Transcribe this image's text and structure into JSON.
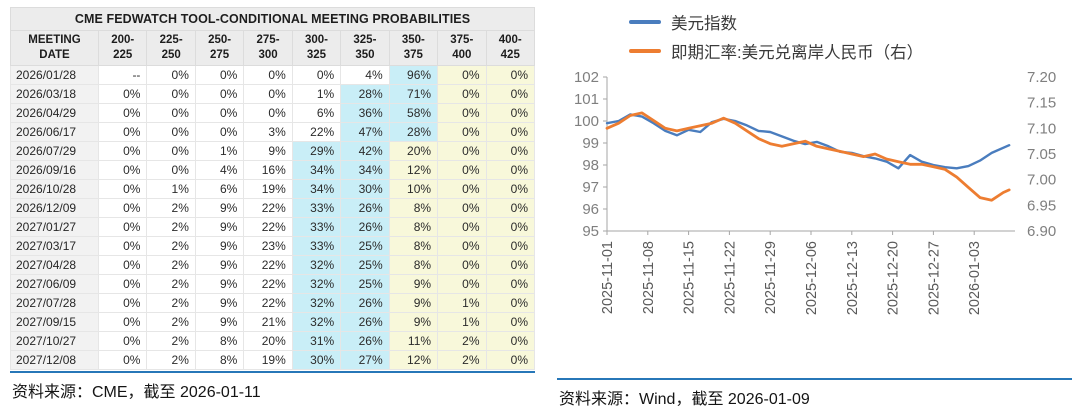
{
  "colors": {
    "divider_blue": "#2777b8",
    "highlight_cyan": "#c9eef7",
    "highlight_yellow": "#f8f8da",
    "header_gray": "#ececec",
    "date_col_gray": "#f2f2f2",
    "series_blue": "#4a7dbe",
    "series_orange": "#ed7d31",
    "axis_gray": "#a6a6a6",
    "tick_label_gray": "#7f7f7f"
  },
  "left_panel": {
    "table": {
      "title": "CME FEDWATCH TOOL-CONDITIONAL MEETING PROBABILITIES",
      "date_header": [
        "MEETING",
        "DATE"
      ],
      "rate_headers": [
        [
          "200-",
          "225"
        ],
        [
          "225-",
          "250"
        ],
        [
          "250-",
          "275"
        ],
        [
          "275-",
          "300"
        ],
        [
          "300-",
          "325"
        ],
        [
          "325-",
          "350"
        ],
        [
          "350-",
          "375"
        ],
        [
          "375-",
          "400"
        ],
        [
          "400-",
          "425"
        ]
      ],
      "rows": [
        {
          "date": "2026/01/28",
          "values": [
            "--",
            "0%",
            "0%",
            "0%",
            "0%",
            "4%",
            "96%",
            "0%",
            "0%"
          ],
          "hl": [
            "n",
            "n",
            "n",
            "n",
            "n",
            "n",
            "c",
            "y",
            "y"
          ]
        },
        {
          "date": "2026/03/18",
          "values": [
            "0%",
            "0%",
            "0%",
            "0%",
            "1%",
            "28%",
            "71%",
            "0%",
            "0%"
          ],
          "hl": [
            "n",
            "n",
            "n",
            "n",
            "n",
            "c",
            "c",
            "y",
            "y"
          ]
        },
        {
          "date": "2026/04/29",
          "values": [
            "0%",
            "0%",
            "0%",
            "0%",
            "6%",
            "36%",
            "58%",
            "0%",
            "0%"
          ],
          "hl": [
            "n",
            "n",
            "n",
            "n",
            "n",
            "c",
            "c",
            "y",
            "y"
          ]
        },
        {
          "date": "2026/06/17",
          "values": [
            "0%",
            "0%",
            "0%",
            "3%",
            "22%",
            "47%",
            "28%",
            "0%",
            "0%"
          ],
          "hl": [
            "n",
            "n",
            "n",
            "n",
            "n",
            "c",
            "c",
            "y",
            "y"
          ]
        },
        {
          "date": "2026/07/29",
          "values": [
            "0%",
            "0%",
            "1%",
            "9%",
            "29%",
            "42%",
            "20%",
            "0%",
            "0%"
          ],
          "hl": [
            "n",
            "n",
            "n",
            "n",
            "c",
            "c",
            "y",
            "y",
            "y"
          ]
        },
        {
          "date": "2026/09/16",
          "values": [
            "0%",
            "0%",
            "4%",
            "16%",
            "34%",
            "34%",
            "12%",
            "0%",
            "0%"
          ],
          "hl": [
            "n",
            "n",
            "n",
            "n",
            "c",
            "c",
            "y",
            "y",
            "y"
          ]
        },
        {
          "date": "2026/10/28",
          "values": [
            "0%",
            "1%",
            "6%",
            "19%",
            "34%",
            "30%",
            "10%",
            "0%",
            "0%"
          ],
          "hl": [
            "n",
            "n",
            "n",
            "n",
            "c",
            "c",
            "y",
            "y",
            "y"
          ]
        },
        {
          "date": "2026/12/09",
          "values": [
            "0%",
            "2%",
            "9%",
            "22%",
            "33%",
            "26%",
            "8%",
            "0%",
            "0%"
          ],
          "hl": [
            "n",
            "n",
            "n",
            "n",
            "c",
            "c",
            "y",
            "y",
            "y"
          ]
        },
        {
          "date": "2027/01/27",
          "values": [
            "0%",
            "2%",
            "9%",
            "22%",
            "33%",
            "26%",
            "8%",
            "0%",
            "0%"
          ],
          "hl": [
            "n",
            "n",
            "n",
            "n",
            "c",
            "c",
            "y",
            "y",
            "y"
          ]
        },
        {
          "date": "2027/03/17",
          "values": [
            "0%",
            "2%",
            "9%",
            "23%",
            "33%",
            "25%",
            "8%",
            "0%",
            "0%"
          ],
          "hl": [
            "n",
            "n",
            "n",
            "n",
            "c",
            "c",
            "y",
            "y",
            "y"
          ]
        },
        {
          "date": "2027/04/28",
          "values": [
            "0%",
            "2%",
            "9%",
            "22%",
            "32%",
            "25%",
            "8%",
            "0%",
            "0%"
          ],
          "hl": [
            "n",
            "n",
            "n",
            "n",
            "c",
            "c",
            "y",
            "y",
            "y"
          ]
        },
        {
          "date": "2027/06/09",
          "values": [
            "0%",
            "2%",
            "9%",
            "22%",
            "32%",
            "25%",
            "9%",
            "0%",
            "0%"
          ],
          "hl": [
            "n",
            "n",
            "n",
            "n",
            "c",
            "c",
            "y",
            "y",
            "y"
          ]
        },
        {
          "date": "2027/07/28",
          "values": [
            "0%",
            "2%",
            "9%",
            "22%",
            "32%",
            "26%",
            "9%",
            "1%",
            "0%"
          ],
          "hl": [
            "n",
            "n",
            "n",
            "n",
            "c",
            "c",
            "y",
            "y",
            "y"
          ]
        },
        {
          "date": "2027/09/15",
          "values": [
            "0%",
            "2%",
            "9%",
            "21%",
            "32%",
            "26%",
            "9%",
            "1%",
            "0%"
          ],
          "hl": [
            "n",
            "n",
            "n",
            "n",
            "c",
            "c",
            "y",
            "y",
            "y"
          ]
        },
        {
          "date": "2027/10/27",
          "values": [
            "0%",
            "2%",
            "8%",
            "20%",
            "31%",
            "26%",
            "11%",
            "2%",
            "0%"
          ],
          "hl": [
            "n",
            "n",
            "n",
            "n",
            "c",
            "c",
            "y",
            "y",
            "y"
          ]
        },
        {
          "date": "2027/12/08",
          "values": [
            "0%",
            "2%",
            "8%",
            "19%",
            "30%",
            "27%",
            "12%",
            "2%",
            "0%"
          ],
          "hl": [
            "n",
            "n",
            "n",
            "n",
            "c",
            "c",
            "y",
            "y",
            "y"
          ]
        }
      ]
    },
    "source": "资料来源：CME，截至 2026-01-11"
  },
  "right_panel": {
    "chart_data": {
      "type": "line",
      "title": "",
      "legend_position": "top",
      "grid": false,
      "x_tick_labels": [
        "2025-11-01",
        "2025-11-08",
        "2025-11-15",
        "2025-11-22",
        "2025-11-29",
        "2025-12-06",
        "2025-12-13",
        "2025-12-20",
        "2025-12-27",
        "2026-01-03"
      ],
      "x_tick_days": [
        0,
        7,
        14,
        21,
        28,
        35,
        42,
        49,
        56,
        63
      ],
      "x_range_days": [
        0,
        70
      ],
      "left_axis": {
        "range": [
          95,
          102
        ],
        "ticks": [
          "102",
          "101",
          "100",
          "99",
          "98",
          "97",
          "96",
          "95"
        ]
      },
      "right_axis": {
        "range": [
          6.9,
          7.2
        ],
        "ticks": [
          "7.20",
          "7.15",
          "7.10",
          "7.05",
          "7.00",
          "6.95",
          "6.90"
        ]
      },
      "series": [
        {
          "name": "美元指数",
          "axis": "left",
          "color": "#4a7dbe",
          "width": 2.4,
          "points": [
            [
              0,
              99.9
            ],
            [
              2,
              100.0
            ],
            [
              4,
              100.3
            ],
            [
              6,
              100.2
            ],
            [
              8,
              99.9
            ],
            [
              10,
              99.55
            ],
            [
              12,
              99.35
            ],
            [
              14,
              99.6
            ],
            [
              16,
              99.5
            ],
            [
              18,
              99.95
            ],
            [
              20,
              100.1
            ],
            [
              22,
              100.0
            ],
            [
              24,
              99.8
            ],
            [
              26,
              99.55
            ],
            [
              28,
              99.5
            ],
            [
              30,
              99.3
            ],
            [
              32,
              99.1
            ],
            [
              34,
              98.95
            ],
            [
              36,
              99.05
            ],
            [
              38,
              98.85
            ],
            [
              40,
              98.6
            ],
            [
              42,
              98.55
            ],
            [
              44,
              98.4
            ],
            [
              46,
              98.3
            ],
            [
              48,
              98.15
            ],
            [
              50,
              97.85
            ],
            [
              52,
              98.45
            ],
            [
              54,
              98.15
            ],
            [
              56,
              98.0
            ],
            [
              58,
              97.9
            ],
            [
              60,
              97.85
            ],
            [
              62,
              97.95
            ],
            [
              64,
              98.2
            ],
            [
              66,
              98.55
            ],
            [
              69,
              98.9
            ]
          ]
        },
        {
          "name": "即期汇率:美元兑离岸人民币（右）",
          "axis": "right",
          "color": "#ed7d31",
          "width": 2.8,
          "points": [
            [
              0,
              7.1
            ],
            [
              2,
              7.11
            ],
            [
              4,
              7.125
            ],
            [
              6,
              7.13
            ],
            [
              8,
              7.115
            ],
            [
              10,
              7.1
            ],
            [
              12,
              7.095
            ],
            [
              14,
              7.1
            ],
            [
              16,
              7.105
            ],
            [
              18,
              7.11
            ],
            [
              20,
              7.12
            ],
            [
              22,
              7.11
            ],
            [
              24,
              7.095
            ],
            [
              26,
              7.08
            ],
            [
              28,
              7.07
            ],
            [
              30,
              7.065
            ],
            [
              32,
              7.07
            ],
            [
              34,
              7.075
            ],
            [
              36,
              7.065
            ],
            [
              38,
              7.06
            ],
            [
              40,
              7.055
            ],
            [
              42,
              7.05
            ],
            [
              44,
              7.045
            ],
            [
              46,
              7.05
            ],
            [
              48,
              7.04
            ],
            [
              50,
              7.035
            ],
            [
              52,
              7.03
            ],
            [
              54,
              7.03
            ],
            [
              56,
              7.025
            ],
            [
              58,
              7.02
            ],
            [
              60,
              7.005
            ],
            [
              62,
              6.985
            ],
            [
              64,
              6.965
            ],
            [
              66,
              6.96
            ],
            [
              68,
              6.975
            ],
            [
              69,
              6.98
            ]
          ]
        }
      ]
    },
    "source": "资料来源：Wind，截至 2026-01-09"
  }
}
